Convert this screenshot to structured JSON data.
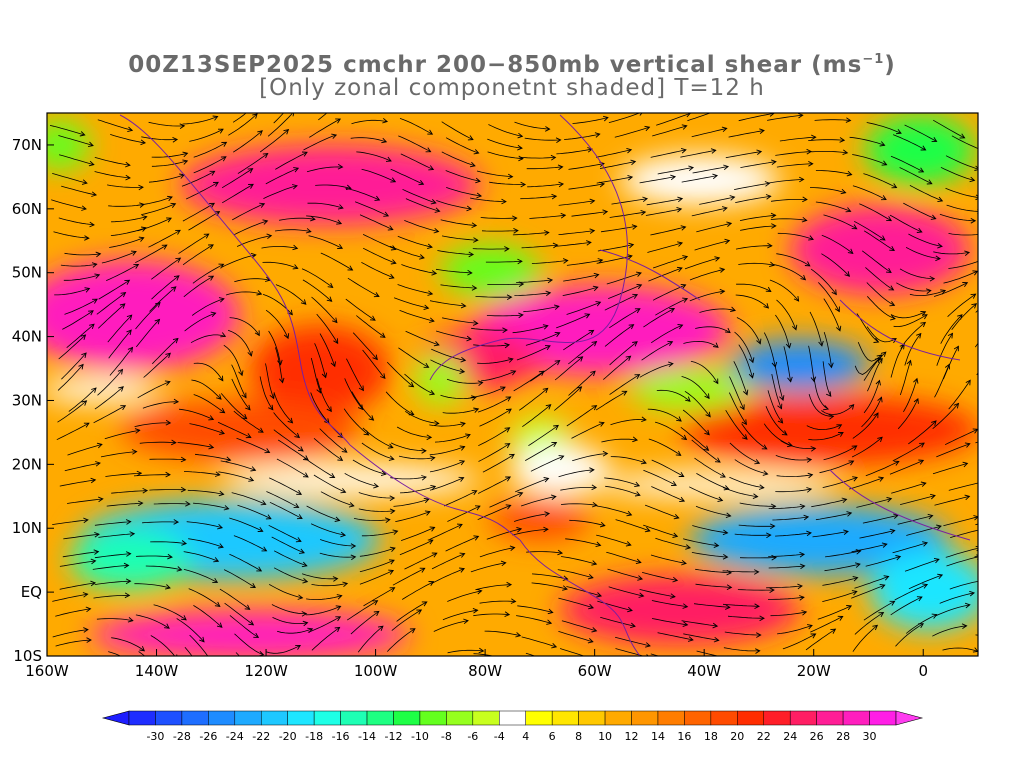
{
  "title": {
    "line1_main": "00Z13SEP2025 cmchr 200−850mb vertical shear (ms",
    "line1_unit_sup": "−1",
    "line1_end": ")",
    "line2": "[Only zonal componetnt shaded] T=12 h"
  },
  "map": {
    "lat_ticks": [
      "70N",
      "60N",
      "50N",
      "40N",
      "30N",
      "20N",
      "10N",
      "EQ",
      "10S"
    ],
    "lat_values": [
      70,
      60,
      50,
      40,
      30,
      20,
      10,
      0,
      -10
    ],
    "lon_ticks": [
      "160W",
      "140W",
      "120W",
      "100W",
      "80W",
      "60W",
      "40W",
      "20W",
      "0"
    ],
    "lon_values": [
      -160,
      -140,
      -120,
      -100,
      -80,
      -60,
      -40,
      -20,
      0
    ],
    "lon_range": [
      -160,
      10
    ],
    "lat_range": [
      -10,
      75
    ],
    "field": "zonal component of 200-850mb vertical shear",
    "streamlines": "black",
    "contours": "purple"
  },
  "colorbar": {
    "labels": [
      "-30",
      "-28",
      "-26",
      "-24",
      "-22",
      "-20",
      "-18",
      "-16",
      "-14",
      "-12",
      "-10",
      "-8",
      "-6",
      "-4",
      "4",
      "6",
      "8",
      "10",
      "12",
      "14",
      "16",
      "18",
      "20",
      "22",
      "24",
      "26",
      "28",
      "30"
    ],
    "colors": [
      "#1e2dff",
      "#1e50ff",
      "#1e6eff",
      "#1e8cff",
      "#1eaaff",
      "#1ec8ff",
      "#1ee6ff",
      "#1effe6",
      "#1effb4",
      "#1eff82",
      "#1eff46",
      "#64ff1e",
      "#96ff1e",
      "#c8ff1e",
      "#ffffff",
      "#ffff00",
      "#ffe600",
      "#ffc800",
      "#ffaa00",
      "#ff9600",
      "#ff7d00",
      "#ff6400",
      "#ff4b00",
      "#ff2d00",
      "#ff1e28",
      "#ff1e64",
      "#ff1e96",
      "#ff1ebe",
      "#ff1ee6"
    ],
    "end_left": "#1e1eff",
    "end_right": "#ff3cf0"
  }
}
